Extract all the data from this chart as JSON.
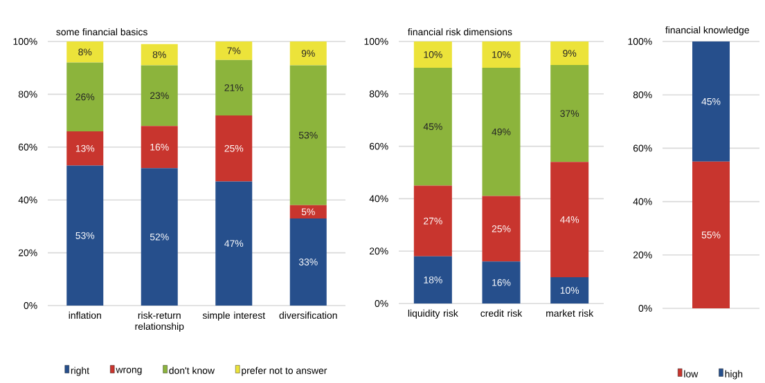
{
  "chart_data": [
    {
      "type": "bar",
      "title": "some financial basics",
      "stacked": true,
      "grid": "y",
      "legend": "bottom",
      "categories": [
        "inflation",
        "risk-return relationship",
        "simple interest",
        "diversification"
      ],
      "ylim": [
        0,
        100
      ],
      "yticks": [
        {
          "value": 0,
          "label": "0%"
        },
        {
          "value": 20,
          "label": "20%"
        },
        {
          "value": 40,
          "label": "40%"
        },
        {
          "value": 60,
          "label": "60%"
        },
        {
          "value": 80,
          "label": "80%"
        },
        {
          "value": 100,
          "label": "100%"
        }
      ],
      "series": [
        {
          "name": "right",
          "color": "#264f8c",
          "values": [
            53,
            52,
            47,
            33
          ],
          "value_labels": [
            "53%",
            "52%",
            "47%",
            "33%"
          ]
        },
        {
          "name": "wrong",
          "color": "#c8352e",
          "values": [
            13,
            16,
            25,
            5
          ],
          "value_labels": [
            "13%",
            "16%",
            "25%",
            "5%"
          ]
        },
        {
          "name": "don't know",
          "color": "#8cb43c",
          "values": [
            26,
            23,
            21,
            53
          ],
          "value_labels": [
            "26%",
            "23%",
            "21%",
            "53%"
          ]
        },
        {
          "name": "prefer not to answer",
          "color": "#ece33a",
          "values": [
            8,
            8,
            7,
            9
          ],
          "value_labels": [
            "8%",
            "8%",
            "7%",
            "9%"
          ]
        }
      ]
    },
    {
      "type": "bar",
      "title": "financial risk dimensions",
      "stacked": true,
      "grid": "y",
      "categories": [
        "liquidity risk",
        "credit risk",
        "market risk"
      ],
      "ylim": [
        0,
        100
      ],
      "yticks": [
        {
          "value": 0,
          "label": "0%"
        },
        {
          "value": 20,
          "label": "20%"
        },
        {
          "value": 40,
          "label": "40%"
        },
        {
          "value": 60,
          "label": "60%"
        },
        {
          "value": 80,
          "label": "80%"
        },
        {
          "value": 100,
          "label": "100%"
        }
      ],
      "series": [
        {
          "color": "#264f8c",
          "values": [
            18,
            16,
            10
          ],
          "value_labels": [
            "18%",
            "16%",
            "10%"
          ]
        },
        {
          "color": "#c8352e",
          "values": [
            27,
            25,
            44
          ],
          "value_labels": [
            "27%",
            "25%",
            "44%"
          ]
        },
        {
          "color": "#8cb43c",
          "values": [
            45,
            49,
            37
          ],
          "value_labels": [
            "45%",
            "49%",
            "37%"
          ]
        },
        {
          "color": "#ece33a",
          "values": [
            10,
            10,
            9
          ],
          "value_labels": [
            "10%",
            "10%",
            "9%"
          ]
        }
      ]
    },
    {
      "type": "bar",
      "title": "financial knowledge",
      "stacked": true,
      "grid": "y",
      "legend": "bottom",
      "categories": [
        null
      ],
      "ylim": [
        0,
        100
      ],
      "yticks": [
        {
          "value": 0,
          "label": "0%"
        },
        {
          "value": 20,
          "label": "20%"
        },
        {
          "value": 40,
          "label": "40%"
        },
        {
          "value": 60,
          "label": "60%"
        },
        {
          "value": 80,
          "label": "80%"
        },
        {
          "value": 100,
          "label": "100%"
        }
      ],
      "series": [
        {
          "name": "low",
          "color": "#c8352e",
          "values": [
            55
          ],
          "value_labels": [
            "55%"
          ]
        },
        {
          "name": "high",
          "color": "#264f8c",
          "values": [
            45
          ],
          "value_labels": [
            "45%"
          ]
        }
      ]
    }
  ]
}
